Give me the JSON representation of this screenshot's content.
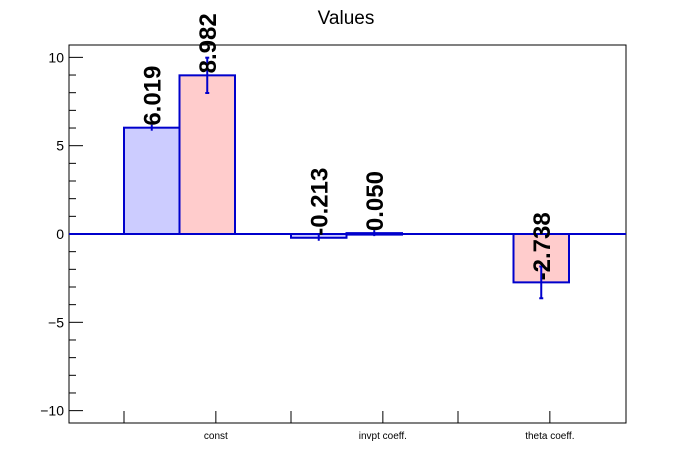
{
  "chart_data": {
    "type": "bar",
    "title": "Values",
    "xlabel": "",
    "ylabel": "",
    "categories": [
      "const",
      "invpt coeff.",
      "theta coeff."
    ],
    "ylim": [
      -10.7,
      10.7
    ],
    "yticks": [
      -10,
      -5,
      0,
      5,
      10
    ],
    "ytick_labels": [
      "−10",
      "−5",
      "0",
      "5",
      "10"
    ],
    "series": [
      {
        "fill": "#ccccff",
        "stroke": "#0000cc",
        "values": [
          6.019,
          -0.213,
          null
        ],
        "errors": [
          0.0,
          0.0,
          null
        ],
        "labels": [
          "6.019",
          "-0.213",
          ""
        ]
      },
      {
        "fill": "#ffcccc",
        "stroke": "#0000cc",
        "values": [
          8.982,
          0.05,
          -2.738
        ],
        "errors": [
          1.0,
          0.0,
          0.9
        ],
        "labels": [
          "8.982",
          "0.050",
          "-2.738"
        ]
      }
    ],
    "grid": false,
    "legend": "none"
  }
}
